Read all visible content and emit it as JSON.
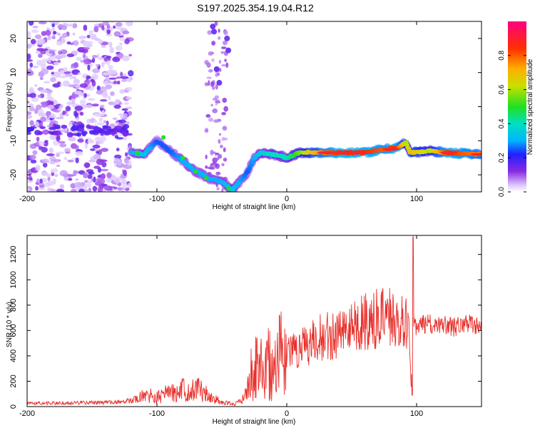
{
  "title": "S197.2025.354.19.04.R12",
  "chart_data": [
    {
      "type": "heatmap",
      "name": "spectrogram",
      "xlabel": "Height of straight line (km)",
      "ylabel": "Frequency (Hz)",
      "xlim": [
        -200,
        150
      ],
      "ylim": [
        -25,
        25
      ],
      "xticks": [
        -200,
        -100,
        0,
        100
      ],
      "yticks": [
        -20,
        -10,
        0,
        10,
        20
      ],
      "colorbar": {
        "label": "Normalized spectral amplitude",
        "range": [
          0.0,
          1.0
        ],
        "ticks": [
          "0.0",
          "0.2",
          "0.4",
          "0.6",
          "0.8"
        ],
        "tick_values": [
          0.0,
          0.2,
          0.4,
          0.6,
          0.8
        ]
      },
      "main_trace": [
        {
          "x": -120,
          "y": -13.5,
          "v": 0.3
        },
        {
          "x": -110,
          "y": -14,
          "v": 0.35
        },
        {
          "x": -100,
          "y": -10,
          "v": 0.25
        },
        {
          "x": -90,
          "y": -13,
          "v": 0.25
        },
        {
          "x": -80,
          "y": -16,
          "v": 0.3
        },
        {
          "x": -70,
          "y": -19,
          "v": 0.3
        },
        {
          "x": -60,
          "y": -21,
          "v": 0.3
        },
        {
          "x": -50,
          "y": -22,
          "v": 0.3
        },
        {
          "x": -42,
          "y": -24.5,
          "v": 0.35
        },
        {
          "x": -36,
          "y": -22,
          "v": 0.3
        },
        {
          "x": -30,
          "y": -19,
          "v": 0.25
        },
        {
          "x": -25,
          "y": -15,
          "v": 0.3
        },
        {
          "x": -20,
          "y": -13.5,
          "v": 0.35
        },
        {
          "x": -10,
          "y": -14,
          "v": 0.4
        },
        {
          "x": 0,
          "y": -15,
          "v": 0.4
        },
        {
          "x": 10,
          "y": -13.5,
          "v": 0.55
        },
        {
          "x": 20,
          "y": -13.5,
          "v": 0.7
        },
        {
          "x": 40,
          "y": -13.5,
          "v": 0.85
        },
        {
          "x": 60,
          "y": -13.5,
          "v": 0.85
        },
        {
          "x": 75,
          "y": -12.5,
          "v": 0.8
        },
        {
          "x": 85,
          "y": -12,
          "v": 0.85
        },
        {
          "x": 92,
          "y": -10.5,
          "v": 0.6
        },
        {
          "x": 95,
          "y": -13.5,
          "v": 0.7
        },
        {
          "x": 110,
          "y": -13,
          "v": 0.6
        },
        {
          "x": 125,
          "y": -13.5,
          "v": 0.85
        },
        {
          "x": 150,
          "y": -14,
          "v": 0.75
        }
      ]
    },
    {
      "type": "line",
      "name": "snr",
      "xlabel": "Height of straight line (km)",
      "ylabel": "SNR (10 * v/v)",
      "xlim": [
        -200,
        150
      ],
      "ylim": [
        0,
        1350
      ],
      "xticks": [
        -200,
        -100,
        0,
        100
      ],
      "yticks": [
        0,
        200,
        400,
        600,
        800,
        1000,
        1200
      ],
      "color": "#e8302b",
      "series": [
        {
          "name": "SNR",
          "x": [
            -200,
            -180,
            -160,
            -140,
            -125,
            -115,
            -108,
            -100,
            -95,
            -90,
            -85,
            -80,
            -75,
            -70,
            -65,
            -60,
            -55,
            -50,
            -45,
            -40,
            -35,
            -30,
            -28,
            -25,
            -20,
            -15,
            -10,
            -5,
            0,
            5,
            10,
            15,
            20,
            25,
            30,
            35,
            40,
            45,
            50,
            55,
            60,
            65,
            70,
            75,
            80,
            85,
            90,
            94,
            96,
            97,
            98,
            100,
            110,
            120,
            130,
            140,
            150
          ],
          "y": [
            25,
            28,
            30,
            32,
            40,
            60,
            100,
            70,
            90,
            120,
            100,
            140,
            110,
            150,
            120,
            90,
            60,
            30,
            25,
            20,
            40,
            120,
            280,
            320,
            300,
            380,
            280,
            400,
            420,
            430,
            460,
            480,
            520,
            540,
            560,
            540,
            600,
            640,
            620,
            660,
            680,
            640,
            700,
            690,
            700,
            680,
            660,
            620,
            100,
            1300,
            620,
            640,
            650,
            640,
            630,
            660,
            640
          ]
        }
      ]
    }
  ]
}
